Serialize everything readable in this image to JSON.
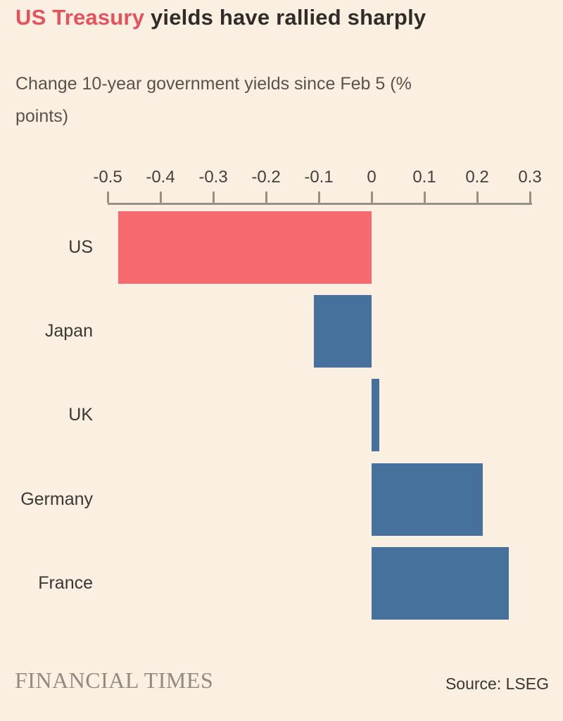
{
  "title": {
    "highlight": "US Treasury",
    "rest": " yields have rallied sharply"
  },
  "subtitle": "Change 10-year government yields since Feb 5 (% points)",
  "footer": {
    "brand": "FINANCIAL TIMES",
    "source": "Source: LSEG"
  },
  "colors": {
    "background": "#FBEFE2",
    "title_accent": "#E4525C",
    "title_text": "#302C28",
    "subtitle_text": "#5A524B",
    "axis": "#9A9186",
    "bar_pink": "#F5696F",
    "bar_blue": "#46719D",
    "brand_text": "#938A80"
  },
  "chart_data": {
    "type": "bar",
    "orientation": "horizontal",
    "title": "US Treasury yields have rallied sharply",
    "subtitle": "Change 10-year government yields since Feb 5 (% points)",
    "categories": [
      "US",
      "Japan",
      "UK",
      "Germany",
      "France"
    ],
    "values": [
      -0.48,
      -0.11,
      0.015,
      0.21,
      0.26
    ],
    "bar_colors": [
      "#F5696F",
      "#46719D",
      "#46719D",
      "#46719D",
      "#46719D"
    ],
    "axis_ticks": [
      "-0.5",
      "-0.4",
      "-0.3",
      "-0.2",
      "-0.1",
      "0",
      "0.1",
      "0.2",
      "0.3"
    ],
    "xlim": [
      -0.5,
      0.3
    ],
    "axis_position": "top",
    "grid": false,
    "legend": "none"
  }
}
